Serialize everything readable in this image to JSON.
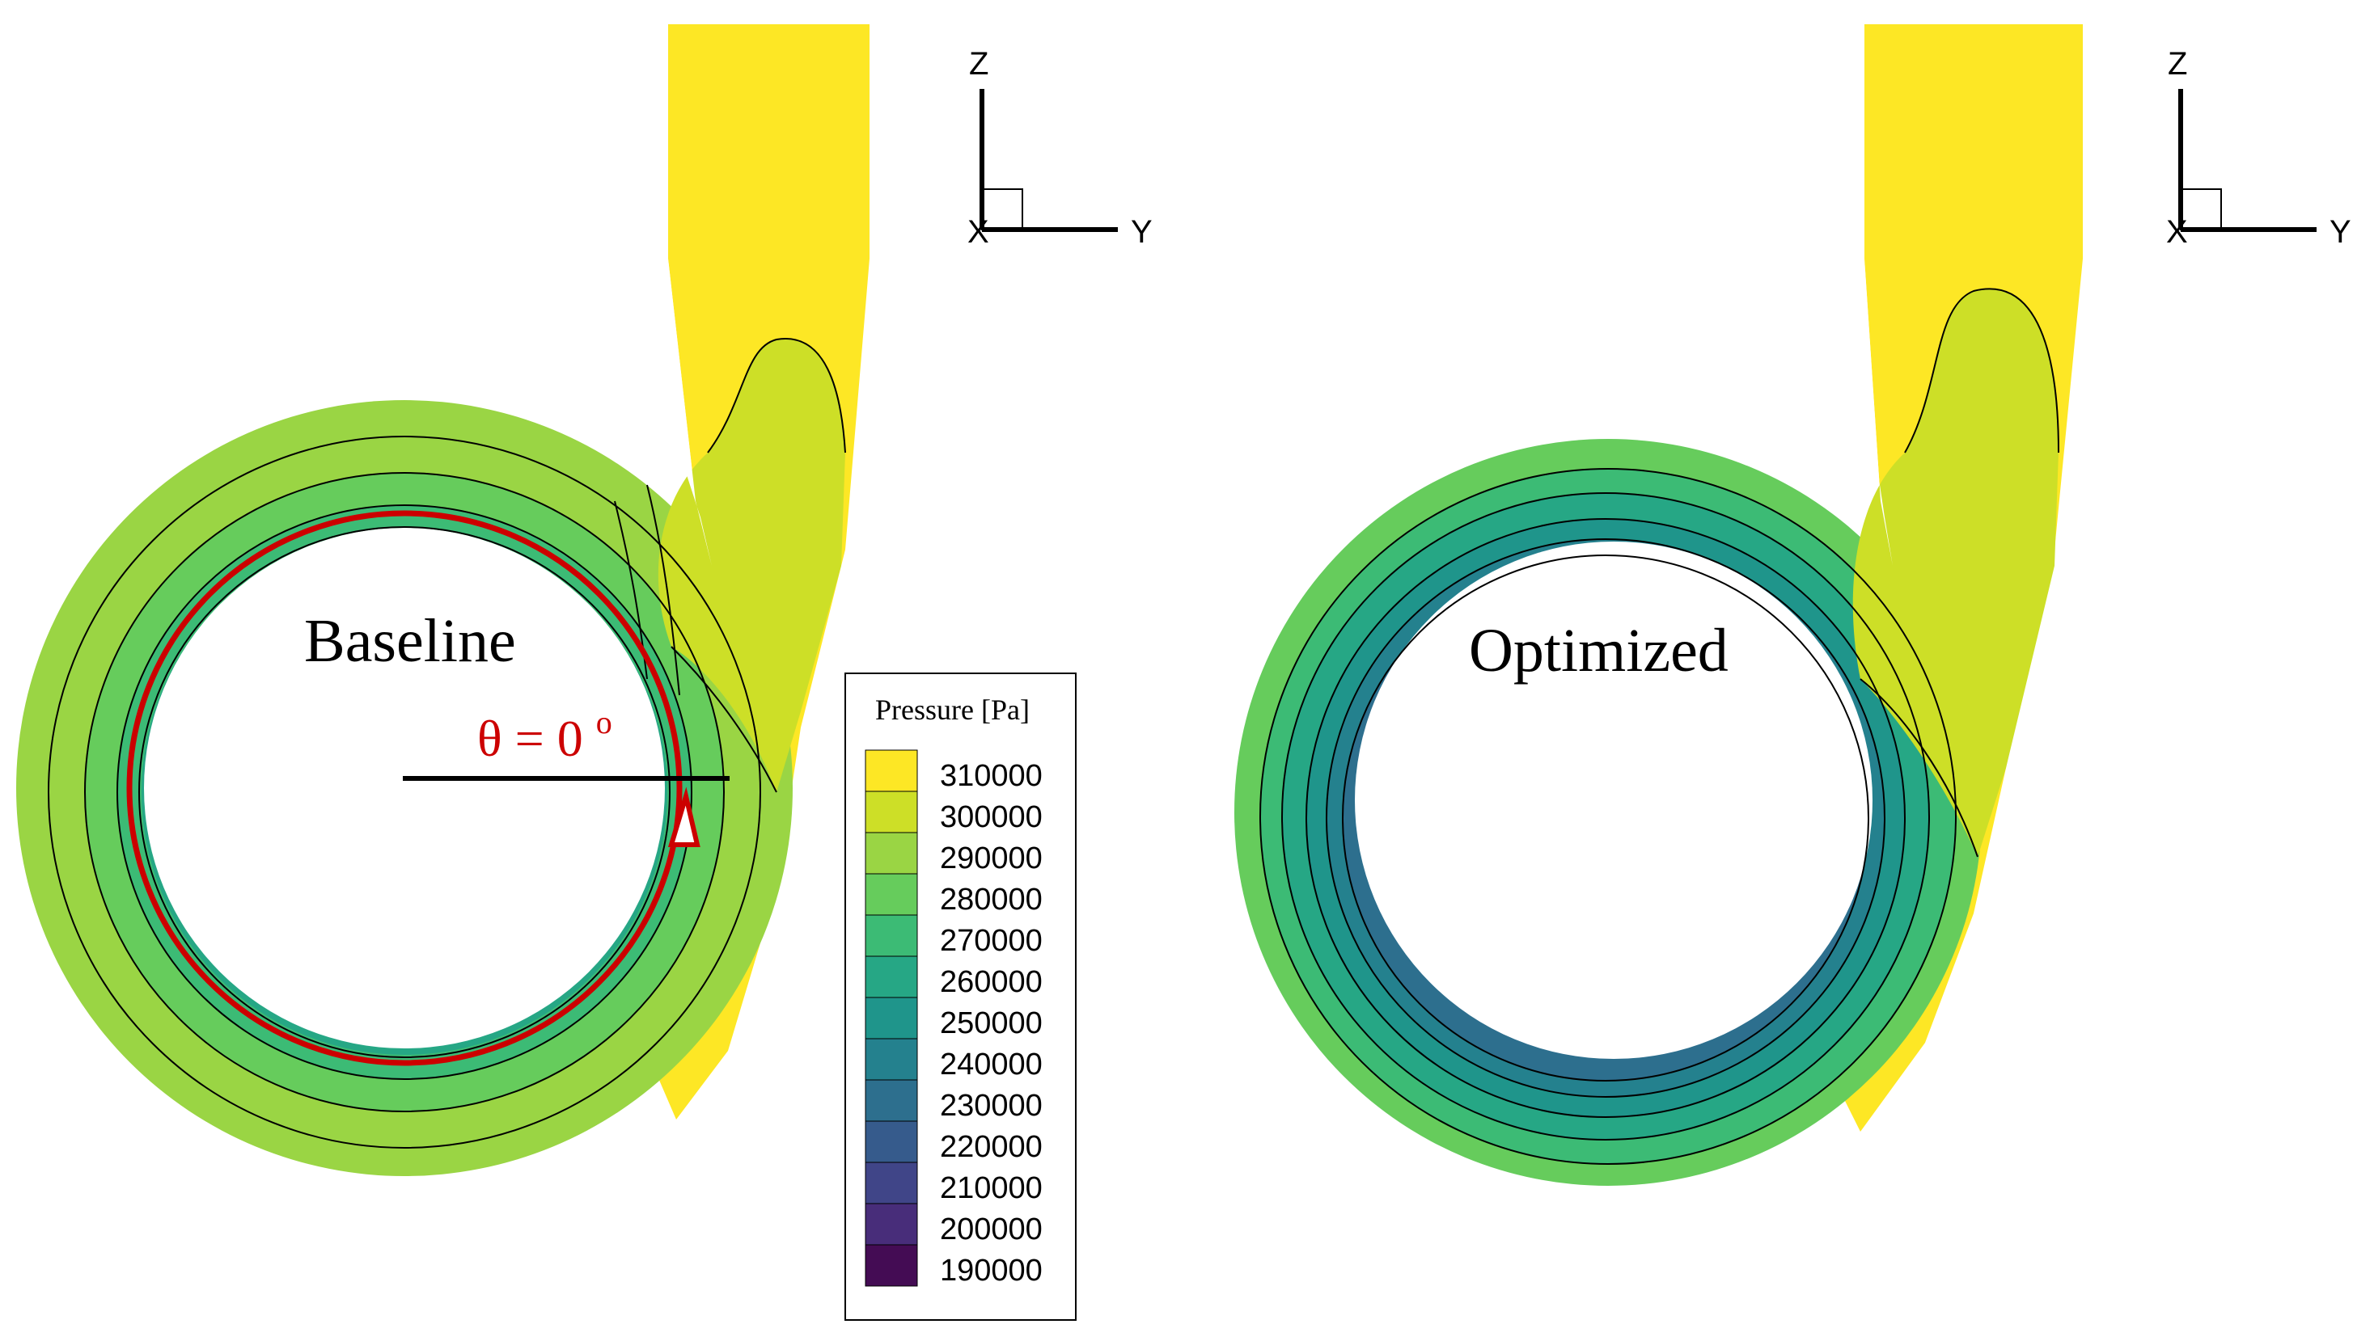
{
  "panels": [
    {
      "label": "Baseline"
    },
    {
      "label": "Optimized"
    }
  ],
  "angle_annotation": {
    "symbol": "θ = 0",
    "superscript": "o",
    "color": "#cc0000"
  },
  "axes_triad": {
    "z": "Z",
    "y": "Y",
    "x": "X"
  },
  "legend": {
    "title": "Pressure [Pa]",
    "levels": [
      {
        "value": "310000",
        "color": "#fde725"
      },
      {
        "value": "300000",
        "color": "#cddf27"
      },
      {
        "value": "290000",
        "color": "#9ad544"
      },
      {
        "value": "280000",
        "color": "#66cc5c"
      },
      {
        "value": "270000",
        "color": "#3cbb75"
      },
      {
        "value": "260000",
        "color": "#26a785"
      },
      {
        "value": "250000",
        "color": "#1f958b"
      },
      {
        "value": "240000",
        "color": "#24818e"
      },
      {
        "value": "230000",
        "color": "#2d6f8e"
      },
      {
        "value": "220000",
        "color": "#365b8c"
      },
      {
        "value": "210000",
        "color": "#404588"
      },
      {
        "value": "200000",
        "color": "#482d7a"
      },
      {
        "value": "190000",
        "color": "#440c54"
      }
    ]
  }
}
